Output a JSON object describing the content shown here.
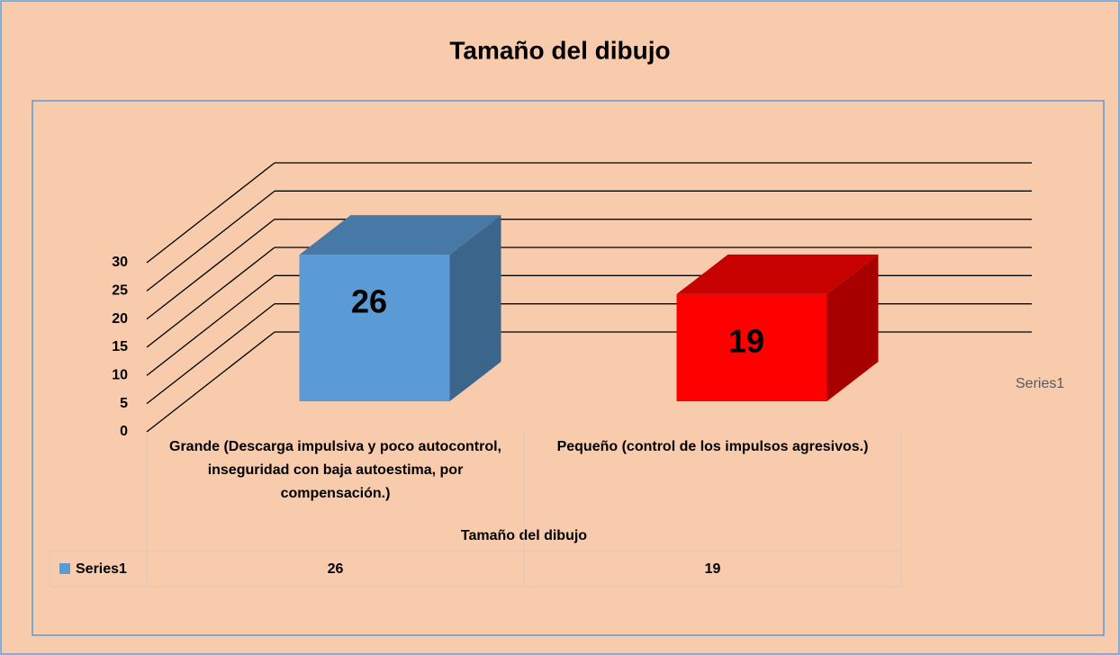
{
  "chart_data": {
    "type": "bar3d",
    "title": "Tamaño del dibujo",
    "categories": [
      "Grande (Descarga impulsiva y poco autocontrol, inseguridad con baja autoestima, por compensación.)",
      "Pequeño (control de los impulsos agresivos.)"
    ],
    "series": [
      {
        "name": "Series1",
        "color": "#5b9bd5",
        "values": [
          26,
          19
        ]
      }
    ],
    "point_colors": [
      "#5b9bd5",
      "#ff0000"
    ],
    "x_label": "Tamaño del dibujo",
    "ylim": [
      0,
      30
    ],
    "yticks": [
      0,
      5,
      10,
      15,
      20,
      25,
      30
    ],
    "grid": true,
    "legend": "right",
    "data_table": true
  }
}
